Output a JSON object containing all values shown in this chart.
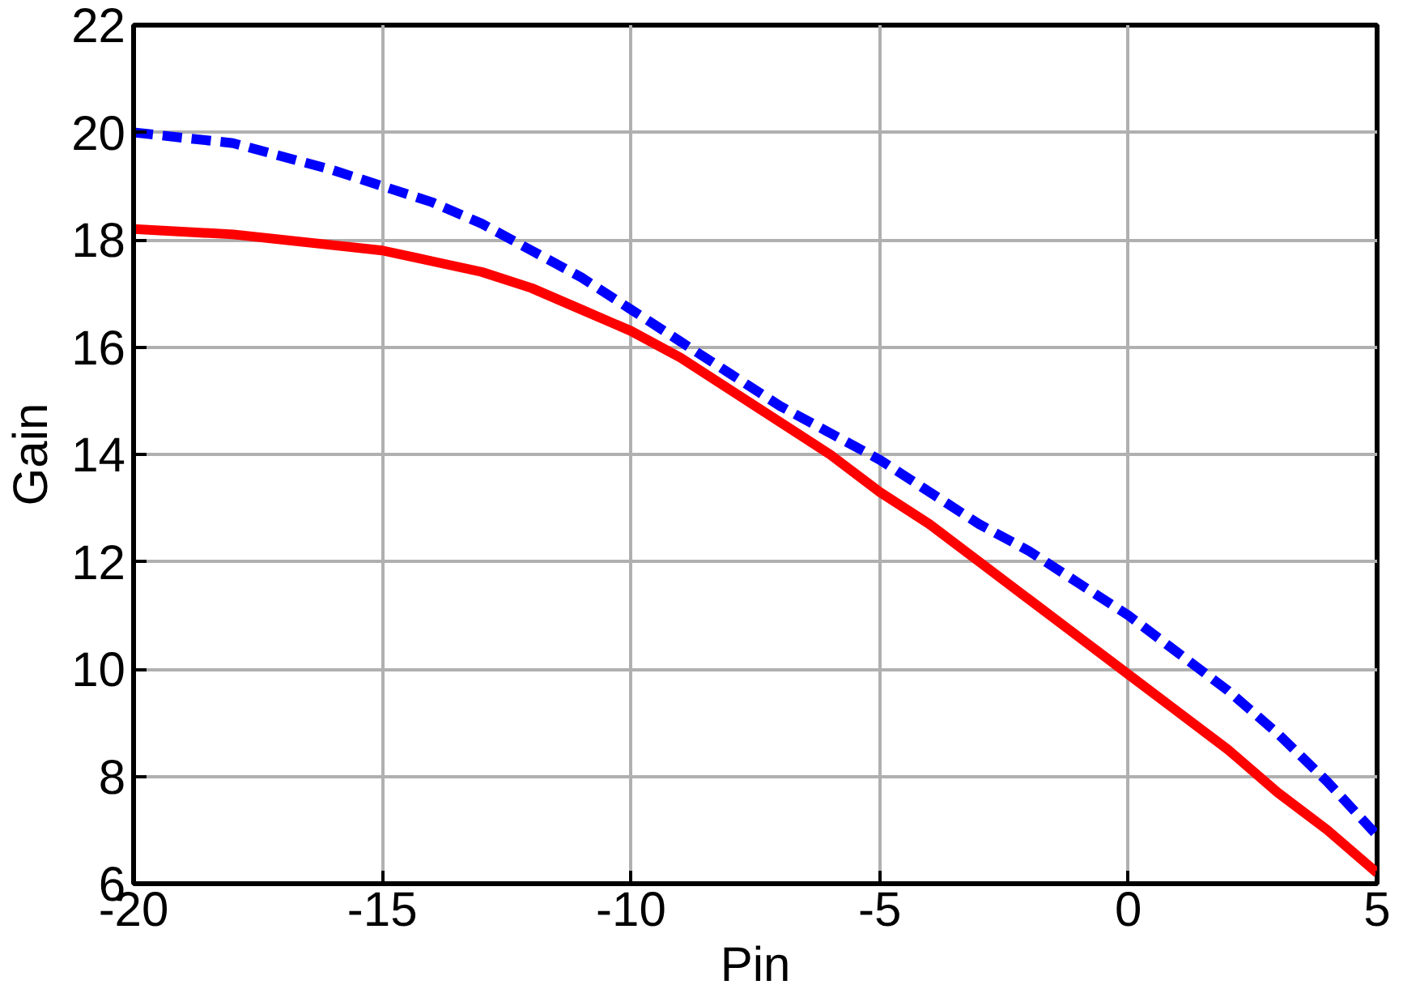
{
  "chart_data": {
    "type": "line",
    "xlabel": "Pin",
    "ylabel": "Gain",
    "xlim": [
      -20,
      5
    ],
    "ylim": [
      6,
      22
    ],
    "xticks": [
      -20,
      -15,
      -10,
      -5,
      0,
      5
    ],
    "yticks": [
      6,
      8,
      10,
      12,
      14,
      16,
      18,
      20,
      22
    ],
    "grid": true,
    "marker": "none",
    "series": [
      {
        "color": "#ff0000",
        "line_style": "solid",
        "x": [
          -20,
          -18,
          -16,
          -15,
          -14,
          -13,
          -12,
          -11,
          -10,
          -9,
          -8,
          -7,
          -6,
          -5,
          -4,
          -3,
          -2,
          -1,
          0,
          1,
          2,
          3,
          4,
          5
        ],
        "values": [
          18.2,
          18.1,
          17.9,
          17.8,
          17.6,
          17.4,
          17.1,
          16.7,
          16.3,
          15.8,
          15.2,
          14.6,
          14.0,
          13.3,
          12.7,
          12.0,
          11.3,
          10.6,
          9.9,
          9.2,
          8.5,
          7.7,
          7.0,
          6.2
        ]
      },
      {
        "color": "#0000ff",
        "line_style": "dashed",
        "x": [
          -20,
          -18,
          -16,
          -15,
          -14,
          -13,
          -12,
          -11,
          -10,
          -9,
          -8,
          -7,
          -6,
          -5,
          -4,
          -3,
          -2,
          -1,
          0,
          1,
          2,
          3,
          4,
          5
        ],
        "values": [
          20.0,
          19.8,
          19.3,
          19.0,
          18.7,
          18.3,
          17.8,
          17.3,
          16.7,
          16.1,
          15.5,
          14.9,
          14.4,
          13.9,
          13.3,
          12.7,
          12.2,
          11.6,
          11.0,
          10.3,
          9.6,
          8.8,
          7.9,
          6.9
        ]
      }
    ]
  }
}
